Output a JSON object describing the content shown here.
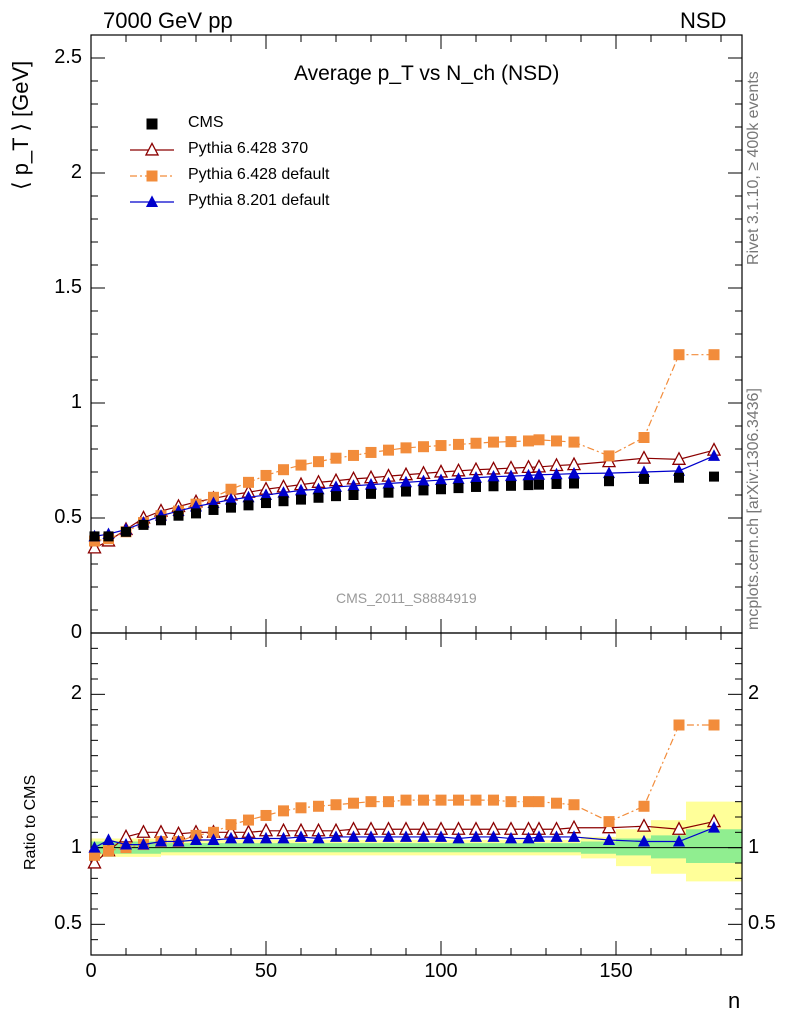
{
  "header": {
    "energy_label": "7000 GeV pp",
    "process_label": "NSD"
  },
  "side": {
    "rivet_label": "Rivet 3.1.10, ≥ 400k events",
    "site_label": "mcplots.cern.ch [arXiv:1306.3436]"
  },
  "watermark": "CMS_2011_S8884919",
  "chart_data": [
    {
      "type": "scatter",
      "title": "Average p_T vs N_ch (NSD)",
      "ylabel": "⟨ p_T ⟩ [GeV]",
      "xlabel": "n",
      "xlim": [
        0,
        186
      ],
      "ylim": [
        0,
        2.6
      ],
      "yticks": [
        "0",
        "0.5",
        "1",
        "1.5",
        "2",
        "2.5"
      ],
      "xticks": [
        "0",
        "50",
        "100",
        "150"
      ],
      "legend": "top-left",
      "series": [
        {
          "name": "CMS",
          "color": "#000000",
          "marker": "square",
          "x": [
            1,
            5,
            10,
            15,
            20,
            25,
            30,
            35,
            40,
            45,
            50,
            55,
            60,
            65,
            70,
            75,
            80,
            85,
            90,
            95,
            100,
            105,
            110,
            115,
            120,
            125,
            128,
            133,
            138,
            148,
            158,
            168,
            178
          ],
          "y": [
            0.42,
            0.42,
            0.44,
            0.47,
            0.49,
            0.51,
            0.52,
            0.535,
            0.545,
            0.555,
            0.565,
            0.573,
            0.58,
            0.588,
            0.595,
            0.6,
            0.605,
            0.61,
            0.615,
            0.62,
            0.625,
            0.63,
            0.635,
            0.638,
            0.64,
            0.643,
            0.645,
            0.648,
            0.65,
            0.66,
            0.67,
            0.675,
            0.68
          ]
        },
        {
          "name": "Pythia 6.428 370",
          "color": "#8b0000",
          "marker": "open-triangle",
          "x": [
            1,
            5,
            10,
            15,
            20,
            25,
            30,
            35,
            40,
            45,
            50,
            55,
            60,
            65,
            70,
            75,
            80,
            85,
            90,
            95,
            100,
            105,
            110,
            115,
            120,
            125,
            128,
            133,
            138,
            148,
            158,
            168,
            178
          ],
          "y": [
            0.37,
            0.4,
            0.45,
            0.5,
            0.53,
            0.55,
            0.57,
            0.585,
            0.6,
            0.612,
            0.625,
            0.635,
            0.645,
            0.655,
            0.662,
            0.67,
            0.675,
            0.682,
            0.688,
            0.694,
            0.7,
            0.705,
            0.71,
            0.713,
            0.717,
            0.72,
            0.722,
            0.728,
            0.732,
            0.745,
            0.76,
            0.755,
            0.795
          ]
        },
        {
          "name": "Pythia 6.428 default",
          "color": "#f28c3b",
          "marker": "square",
          "dashed": true,
          "x": [
            1,
            5,
            10,
            15,
            20,
            25,
            30,
            35,
            40,
            45,
            50,
            55,
            60,
            65,
            70,
            75,
            80,
            85,
            90,
            95,
            100,
            105,
            110,
            115,
            120,
            125,
            128,
            133,
            138,
            148,
            158,
            168,
            178
          ],
          "y": [
            0.4,
            0.41,
            0.44,
            0.48,
            0.51,
            0.53,
            0.56,
            0.59,
            0.625,
            0.655,
            0.685,
            0.71,
            0.73,
            0.745,
            0.76,
            0.772,
            0.785,
            0.795,
            0.805,
            0.81,
            0.815,
            0.82,
            0.825,
            0.83,
            0.832,
            0.835,
            0.84,
            0.835,
            0.83,
            0.77,
            0.85,
            1.21,
            1.21
          ]
        },
        {
          "name": "Pythia 8.201 default",
          "color": "#0000cc",
          "marker": "triangle",
          "x": [
            1,
            5,
            10,
            15,
            20,
            25,
            30,
            35,
            40,
            45,
            50,
            55,
            60,
            65,
            70,
            75,
            80,
            85,
            90,
            95,
            100,
            105,
            110,
            115,
            120,
            125,
            128,
            133,
            138,
            148,
            158,
            168,
            178
          ],
          "y": [
            0.42,
            0.43,
            0.45,
            0.48,
            0.51,
            0.53,
            0.55,
            0.565,
            0.58,
            0.59,
            0.6,
            0.61,
            0.62,
            0.625,
            0.635,
            0.64,
            0.645,
            0.65,
            0.655,
            0.66,
            0.665,
            0.67,
            0.675,
            0.68,
            0.682,
            0.685,
            0.688,
            0.69,
            0.693,
            0.695,
            0.7,
            0.705,
            0.77
          ]
        }
      ]
    },
    {
      "type": "scatter",
      "ylabel": "Ratio to CMS",
      "xlabel": "n",
      "xlim": [
        0,
        186
      ],
      "ylim": [
        0.3,
        2.4
      ],
      "yticks": [
        "0.5",
        "1",
        "2"
      ],
      "xticks": [
        "0",
        "50",
        "100",
        "150"
      ],
      "band": {
        "x": [
          0,
          20,
          40,
          60,
          80,
          100,
          120,
          140,
          150,
          160,
          170,
          186
        ],
        "inner_low": [
          0.96,
          0.97,
          0.97,
          0.97,
          0.97,
          0.97,
          0.97,
          0.96,
          0.95,
          0.93,
          0.9,
          0.9
        ],
        "inner_high": [
          1.04,
          1.03,
          1.03,
          1.03,
          1.03,
          1.03,
          1.03,
          1.04,
          1.06,
          1.08,
          1.12,
          1.12
        ],
        "outer_low": [
          0.94,
          0.95,
          0.95,
          0.95,
          0.95,
          0.95,
          0.95,
          0.93,
          0.88,
          0.83,
          0.78,
          0.78
        ],
        "outer_high": [
          1.06,
          1.05,
          1.05,
          1.05,
          1.05,
          1.05,
          1.05,
          1.07,
          1.12,
          1.18,
          1.3,
          1.3
        ],
        "inner_color": "#90ee90",
        "outer_color": "#ffff99"
      },
      "series": [
        {
          "name": "Pythia 6.428 370",
          "color": "#8b0000",
          "marker": "open-triangle",
          "x": [
            1,
            5,
            10,
            15,
            20,
            25,
            30,
            35,
            40,
            45,
            50,
            55,
            60,
            65,
            70,
            75,
            80,
            85,
            90,
            95,
            100,
            105,
            110,
            115,
            120,
            125,
            128,
            133,
            138,
            148,
            158,
            168,
            178
          ],
          "y": [
            0.9,
            0.98,
            1.07,
            1.1,
            1.1,
            1.09,
            1.1,
            1.1,
            1.1,
            1.1,
            1.11,
            1.11,
            1.11,
            1.11,
            1.11,
            1.12,
            1.12,
            1.12,
            1.12,
            1.12,
            1.12,
            1.12,
            1.12,
            1.12,
            1.12,
            1.12,
            1.12,
            1.12,
            1.13,
            1.13,
            1.14,
            1.12,
            1.17
          ]
        },
        {
          "name": "Pythia 6.428 default",
          "color": "#f28c3b",
          "marker": "square",
          "dashed": true,
          "x": [
            1,
            5,
            10,
            15,
            20,
            25,
            30,
            35,
            40,
            45,
            50,
            55,
            60,
            65,
            70,
            75,
            80,
            85,
            90,
            95,
            100,
            105,
            110,
            115,
            120,
            125,
            128,
            133,
            138,
            148,
            158,
            168,
            178
          ],
          "y": [
            0.95,
            0.98,
            1.0,
            1.02,
            1.04,
            1.04,
            1.08,
            1.1,
            1.15,
            1.18,
            1.21,
            1.24,
            1.26,
            1.27,
            1.28,
            1.29,
            1.3,
            1.3,
            1.31,
            1.31,
            1.31,
            1.31,
            1.31,
            1.31,
            1.3,
            1.3,
            1.3,
            1.29,
            1.28,
            1.17,
            1.27,
            1.8,
            1.8
          ]
        },
        {
          "name": "Pythia 8.201 default",
          "color": "#0000cc",
          "marker": "triangle",
          "x": [
            1,
            5,
            10,
            15,
            20,
            25,
            30,
            35,
            40,
            45,
            50,
            55,
            60,
            65,
            70,
            75,
            80,
            85,
            90,
            95,
            100,
            105,
            110,
            115,
            120,
            125,
            128,
            133,
            138,
            148,
            158,
            168,
            178
          ],
          "y": [
            1.0,
            1.05,
            1.02,
            1.02,
            1.04,
            1.04,
            1.05,
            1.05,
            1.06,
            1.06,
            1.06,
            1.06,
            1.07,
            1.06,
            1.07,
            1.07,
            1.07,
            1.07,
            1.07,
            1.07,
            1.07,
            1.06,
            1.07,
            1.07,
            1.06,
            1.06,
            1.07,
            1.07,
            1.07,
            1.05,
            1.04,
            1.04,
            1.13
          ]
        }
      ]
    }
  ]
}
